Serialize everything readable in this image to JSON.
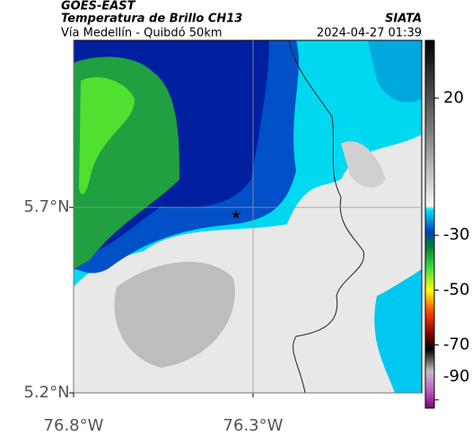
{
  "header": {
    "source": "GOES-EAST",
    "title": "Temperatura de Brillo CH13",
    "brand": "SIATA",
    "subtitle": "Vía Medellín - Quibdó 50km",
    "timestamp": "2024-04-27 01:39"
  },
  "map": {
    "xlim": [
      -76.8,
      -75.83
    ],
    "ylim": [
      5.2,
      6.15
    ],
    "xticks": [
      {
        "value": -76.8,
        "label": "76.8°W"
      },
      {
        "value": -76.3,
        "label": "76.3°W"
      }
    ],
    "yticks": [
      {
        "value": 5.7,
        "label": "5.7°N"
      },
      {
        "value": 5.2,
        "label": "5.2°N"
      }
    ],
    "grid": true
  },
  "colorbar": {
    "lim": [
      41,
      -93
    ],
    "ticks": [
      20,
      -30,
      -50,
      -70,
      -90
    ]
  }
}
